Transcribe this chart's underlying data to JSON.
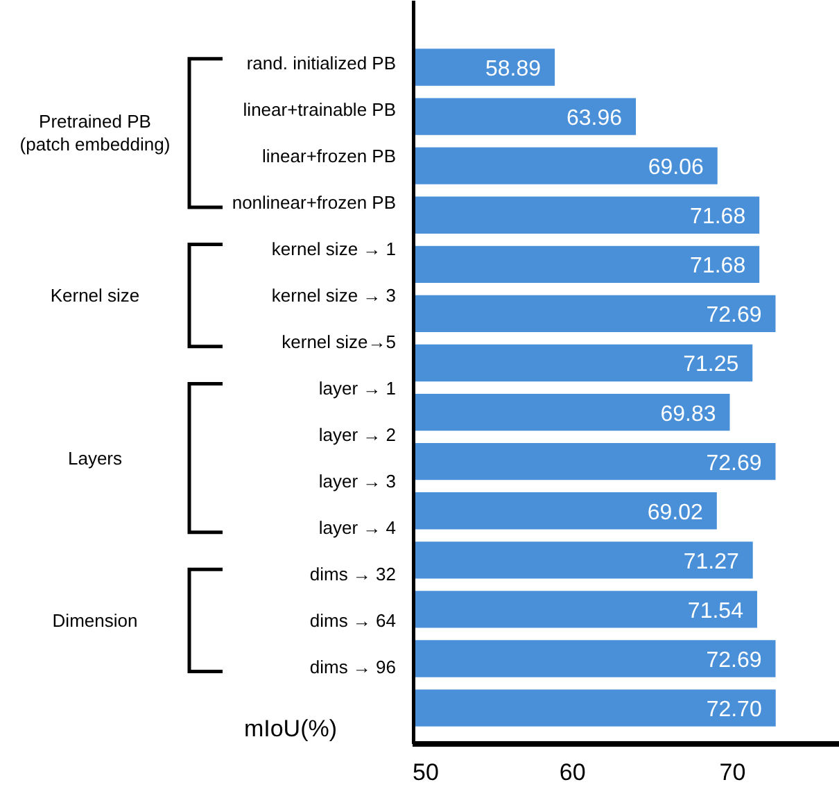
{
  "chart_data": {
    "type": "bar",
    "orientation": "horizontal",
    "xlabel": "mIoU(%)",
    "categories": [
      "rand. initialized PB",
      "linear+trainable PB",
      "linear+frozen PB",
      "nonlinear+frozen PB",
      "kernel size → 1",
      "kernel size → 3",
      "kernel size→5",
      "layer → 1",
      "layer → 2",
      "layer → 3",
      "layer → 4",
      "dims → 32",
      "dims → 64",
      "dims → 96"
    ],
    "values": [
      58.89,
      63.96,
      69.06,
      71.68,
      71.68,
      72.69,
      71.25,
      69.83,
      72.69,
      69.02,
      71.27,
      71.54,
      72.69,
      72.7
    ],
    "value_labels": [
      "58.89",
      "63.96",
      "69.06",
      "71.68",
      "71.68",
      "72.69",
      "71.25",
      "69.83",
      "72.69",
      "69.02",
      "71.27",
      "71.54",
      "72.69",
      "72.70"
    ],
    "color": "#4a90d9",
    "xlim": [
      50,
      76.7
    ],
    "xticks": [
      50,
      60,
      70
    ],
    "grid": false,
    "annotations": [
      "Pretrained PB\n(patch embedding)",
      "Kernel size",
      "Layers",
      "Dimension"
    ]
  }
}
